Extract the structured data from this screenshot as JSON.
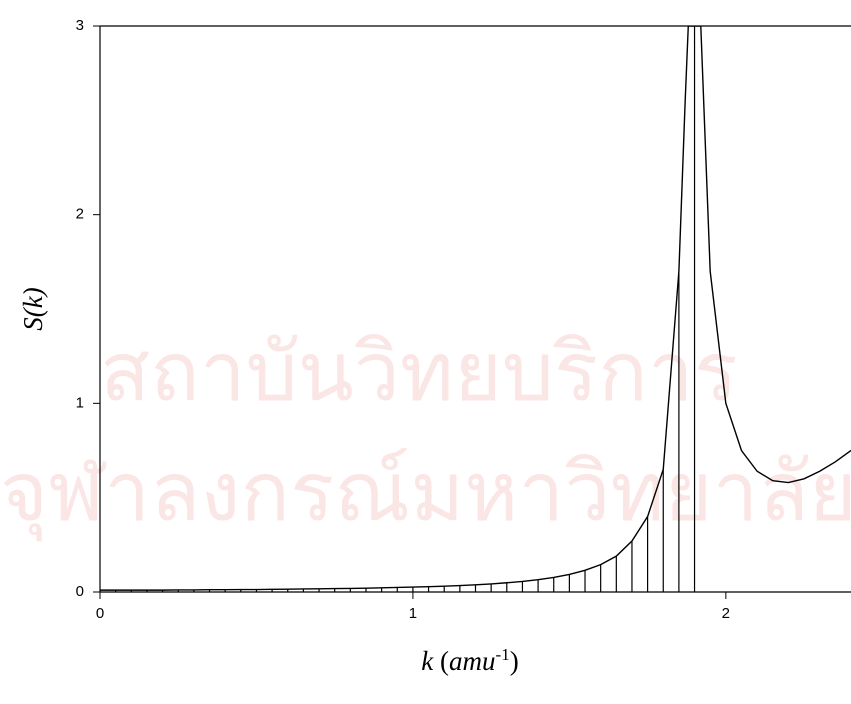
{
  "chart_data": {
    "type": "line",
    "ylabel": "S(k)",
    "xlabel_parts": [
      "k",
      " (",
      "amu",
      "-1",
      ")"
    ],
    "watermark": [
      "สถาบันวิทยบริการ",
      "จุฬาลงกรณ์มหาวิทยาลัย"
    ],
    "xlim": [
      0,
      2.4
    ],
    "ylim": [
      0,
      3
    ],
    "xticks": [
      0,
      1,
      2
    ],
    "yticks": [
      0,
      1,
      2,
      3
    ],
    "series": [
      {
        "color": "#000000",
        "x": [
          0,
          0.05,
          0.1,
          0.15,
          0.2,
          0.25,
          0.3,
          0.35,
          0.4,
          0.45,
          0.5,
          0.55,
          0.6,
          0.65,
          0.7,
          0.75,
          0.8,
          0.85,
          0.9,
          0.95,
          1.0,
          1.05,
          1.1,
          1.15,
          1.2,
          1.25,
          1.3,
          1.35,
          1.4,
          1.45,
          1.5,
          1.55,
          1.6,
          1.65,
          1.7,
          1.75,
          1.8,
          1.85,
          1.87,
          1.88,
          1.92,
          1.95,
          2.0,
          2.05,
          2.1,
          2.15,
          2.2,
          2.25,
          2.3,
          2.35,
          2.4
        ],
        "values": [
          0.01,
          0.01,
          0.01,
          0.01,
          0.01,
          0.011,
          0.011,
          0.012,
          0.012,
          0.013,
          0.013,
          0.014,
          0.015,
          0.016,
          0.017,
          0.018,
          0.019,
          0.02,
          0.022,
          0.024,
          0.026,
          0.028,
          0.031,
          0.034,
          0.038,
          0.043,
          0.049,
          0.056,
          0.065,
          0.077,
          0.093,
          0.115,
          0.145,
          0.19,
          0.27,
          0.4,
          0.65,
          1.7,
          2.6,
          3,
          3,
          1.7,
          1.0,
          0.75,
          0.64,
          0.59,
          0.58,
          0.6,
          0.64,
          0.69,
          0.75
        ]
      },
      {
        "color": "#000000",
        "style": "stems",
        "x": [
          0,
          0.05,
          0.1,
          0.15,
          0.2,
          0.25,
          0.3,
          0.35,
          0.4,
          0.45,
          0.5,
          0.55,
          0.6,
          0.65,
          0.7,
          0.75,
          0.8,
          0.85,
          0.9,
          0.95,
          1.0,
          1.05,
          1.1,
          1.15,
          1.2,
          1.25,
          1.3,
          1.35,
          1.4,
          1.45,
          1.5,
          1.55,
          1.6,
          1.65,
          1.7,
          1.75,
          1.8,
          1.85,
          1.9
        ],
        "values": [
          0.01,
          0.01,
          0.01,
          0.01,
          0.01,
          0.011,
          0.011,
          0.012,
          0.012,
          0.013,
          0.013,
          0.014,
          0.015,
          0.016,
          0.017,
          0.018,
          0.019,
          0.02,
          0.022,
          0.024,
          0.026,
          0.028,
          0.031,
          0.034,
          0.038,
          0.043,
          0.049,
          0.056,
          0.065,
          0.077,
          0.093,
          0.115,
          0.145,
          0.19,
          0.27,
          0.4,
          0.65,
          1.7,
          3
        ]
      }
    ]
  }
}
